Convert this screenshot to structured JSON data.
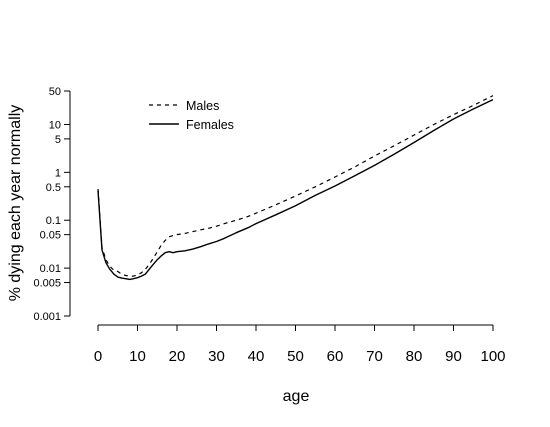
{
  "chart_data": {
    "type": "line",
    "xlabel": "age",
    "ylabel": "% dying each year normally",
    "xlim": [
      0,
      100
    ],
    "ylim": [
      0.001,
      50
    ],
    "yscale": "log",
    "xticks": [
      0,
      10,
      20,
      30,
      40,
      50,
      60,
      70,
      80,
      90,
      100
    ],
    "yticks": [
      0.001,
      0.005,
      0.01,
      0.05,
      0.1,
      0.5,
      1,
      5,
      10,
      50
    ],
    "ytick_labels": [
      "0.001",
      "0.005",
      "0.01",
      "0.05",
      "0.1",
      "0.5",
      "1",
      "5",
      "10",
      "50"
    ],
    "legend_position": "top-left",
    "grid": false,
    "series": [
      {
        "name": "Males",
        "linestyle": "dashed",
        "color": "#000000",
        "x": [
          0,
          1,
          2,
          3,
          4,
          5,
          6,
          7,
          8,
          9,
          10,
          11,
          12,
          13,
          14,
          15,
          16,
          17,
          18,
          19,
          20,
          22,
          24,
          26,
          28,
          30,
          32,
          35,
          38,
          40,
          45,
          50,
          55,
          60,
          65,
          70,
          75,
          80,
          85,
          90,
          95,
          100
        ],
        "y": [
          0.45,
          0.027,
          0.015,
          0.011,
          0.009,
          0.0085,
          0.0075,
          0.007,
          0.0068,
          0.0068,
          0.0072,
          0.008,
          0.0095,
          0.012,
          0.016,
          0.022,
          0.03,
          0.038,
          0.045,
          0.048,
          0.05,
          0.053,
          0.058,
          0.063,
          0.068,
          0.075,
          0.085,
          0.1,
          0.12,
          0.14,
          0.21,
          0.32,
          0.5,
          0.8,
          1.3,
          2.2,
          3.6,
          6.0,
          10,
          16,
          25,
          40
        ]
      },
      {
        "name": "Females",
        "linestyle": "solid",
        "color": "#000000",
        "x": [
          0,
          1,
          2,
          3,
          4,
          5,
          6,
          7,
          8,
          9,
          10,
          11,
          12,
          13,
          14,
          15,
          16,
          17,
          18,
          19,
          20,
          22,
          24,
          26,
          28,
          30,
          32,
          35,
          38,
          40,
          45,
          50,
          55,
          60,
          65,
          70,
          75,
          80,
          85,
          90,
          95,
          100
        ],
        "y": [
          0.42,
          0.024,
          0.013,
          0.0095,
          0.0075,
          0.0065,
          0.0062,
          0.006,
          0.0058,
          0.006,
          0.0063,
          0.0068,
          0.0075,
          0.0095,
          0.012,
          0.015,
          0.018,
          0.021,
          0.022,
          0.021,
          0.022,
          0.023,
          0.025,
          0.028,
          0.032,
          0.036,
          0.042,
          0.055,
          0.07,
          0.085,
          0.13,
          0.2,
          0.33,
          0.52,
          0.85,
          1.4,
          2.4,
          4.2,
          7.5,
          13,
          21,
          33
        ]
      }
    ]
  }
}
